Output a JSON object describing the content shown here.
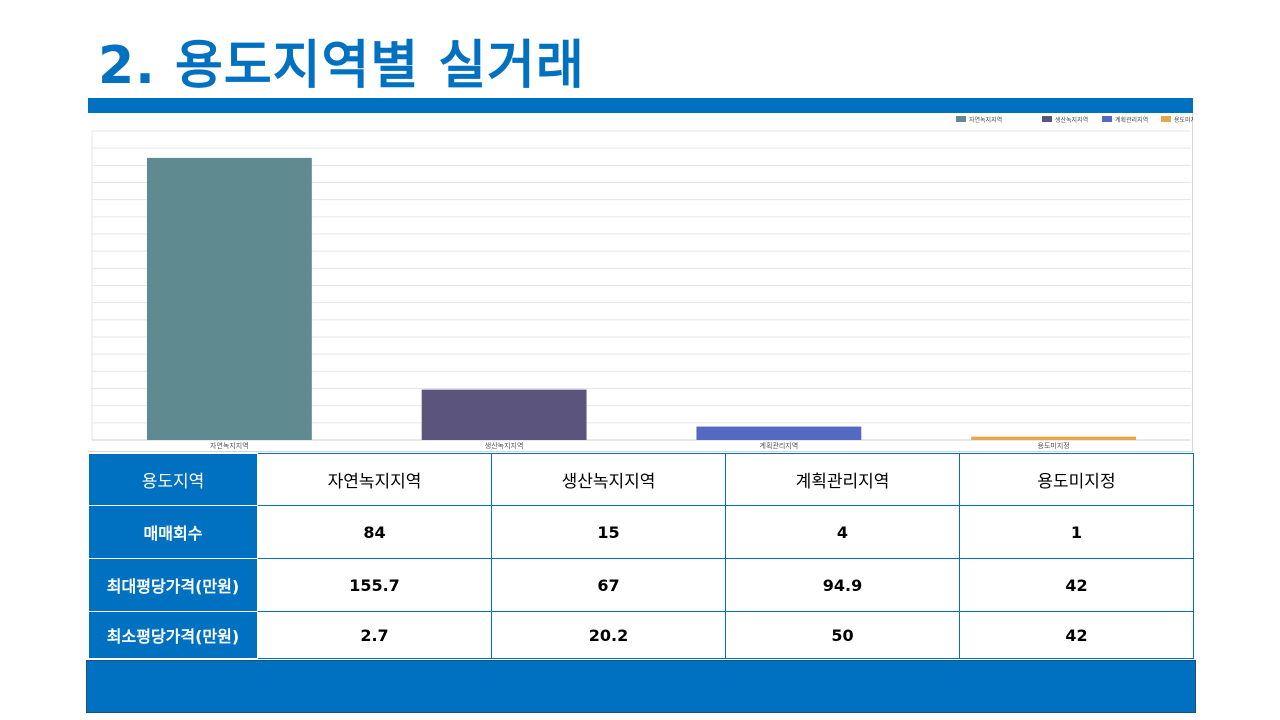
{
  "title": "2. 용도지역별 실거래",
  "chart_data": {
    "type": "bar",
    "categories": [
      "자연녹지지역",
      "생산녹지지역",
      "계획관리지역",
      "용도미지정"
    ],
    "values": [
      84,
      15,
      4,
      1
    ],
    "ylim": [
      0,
      92
    ],
    "grid": true,
    "legend_position": "top-right",
    "legend": [
      "자연녹지지역",
      "생산녹지지역",
      "계획관리지역",
      "용도미지정"
    ],
    "colors": [
      "#5F8A90",
      "#5B557D",
      "#5469C2",
      "#E3A84A"
    ]
  },
  "table": {
    "header_label": "용도지역",
    "columns": [
      "자연녹지지역",
      "생산녹지지역",
      "계획관리지역",
      "용도미지정"
    ],
    "rows": [
      {
        "label": "매매회수",
        "values": [
          "84",
          "15",
          "4",
          "1"
        ]
      },
      {
        "label": "최대평당가격(만원)",
        "values": [
          "155.7",
          "67",
          "94.9",
          "42"
        ]
      },
      {
        "label": "최소평당가격(만원)",
        "values": [
          "2.7",
          "20.2",
          "50",
          "42"
        ]
      }
    ]
  }
}
